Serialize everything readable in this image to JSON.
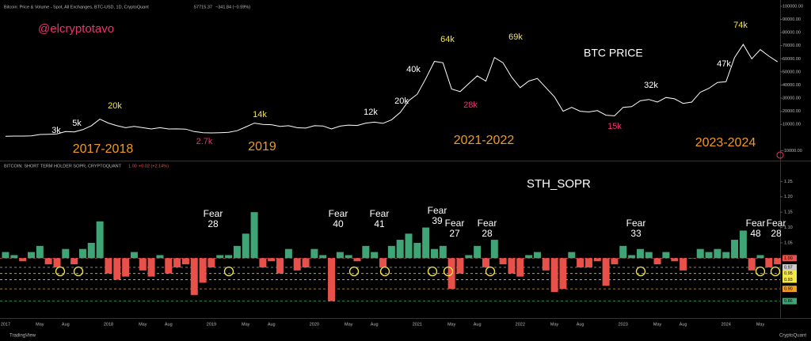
{
  "header": {
    "price_title": "Bitcoin: Price & Volume - Spot, All Exchanges, BTC-USD, 1D, CryptoQuant",
    "price_last": "57715.37",
    "price_change": "−341.84 (−0.59%)",
    "sopr_title": "BITCOIN: SHORT TERM HOLDER SOPR, CRYPTOQUANT",
    "sopr_last": "1.00",
    "sopr_change": "+0.02 (+2.14%)",
    "author": "@elcryptotavo",
    "price_label": "BTC PRICE",
    "sopr_label": "STH_SOPR"
  },
  "footer": {
    "left": "TradingView",
    "right": "CryptoQuant"
  },
  "chart_data": [
    {
      "type": "line",
      "color": "#ffffff",
      "categories": [
        "2017",
        null,
        null,
        null,
        "May",
        null,
        null,
        "Aug",
        null,
        null,
        null,
        null,
        "2018",
        null,
        null,
        null,
        "May",
        null,
        null,
        "Aug",
        null,
        null,
        null,
        null,
        "2019",
        null,
        null,
        null,
        "May",
        null,
        null,
        "Aug",
        null,
        null,
        null,
        null,
        "2020",
        null,
        null,
        null,
        "May",
        null,
        null,
        "Aug",
        null,
        null,
        null,
        null,
        "2021",
        null,
        null,
        null,
        "May",
        null,
        null,
        "Aug",
        null,
        null,
        null,
        null,
        "2022",
        null,
        null,
        null,
        "May",
        null,
        null,
        "Aug",
        null,
        null,
        null,
        null,
        "2023",
        null,
        null,
        null,
        "May",
        null,
        null,
        "Aug",
        null,
        null,
        null,
        null,
        "2024",
        null,
        null,
        null,
        "May",
        null,
        null
      ],
      "values": [
        1000,
        1100,
        1100,
        1300,
        2300,
        2500,
        2800,
        4500,
        4300,
        6000,
        9000,
        14000,
        11000,
        9000,
        7500,
        8500,
        7500,
        6500,
        7500,
        6500,
        6600,
        6400,
        4500,
        3700,
        3500,
        3700,
        4000,
        5200,
        8000,
        11000,
        10000,
        9800,
        8500,
        9000,
        7500,
        7200,
        9000,
        8800,
        6500,
        8700,
        9500,
        9200,
        11000,
        11700,
        10800,
        13500,
        19000,
        28000,
        33000,
        45000,
        58000,
        57000,
        37000,
        35000,
        41000,
        47000,
        43000,
        61000,
        57000,
        46000,
        38000,
        43000,
        45000,
        38000,
        31000,
        20000,
        23000,
        20000,
        19500,
        20500,
        17000,
        16500,
        23000,
        23500,
        28000,
        29000,
        27000,
        30500,
        29500,
        26000,
        27000,
        34500,
        37500,
        42000,
        42500,
        61000,
        71000,
        60000,
        67000,
        62000,
        57700
      ],
      "ylim": [
        -17000,
        103000
      ],
      "yticks": [
        {
          "value": 100000,
          "label": "100000.00"
        },
        {
          "value": 90000,
          "label": "90000.00"
        },
        {
          "value": 80000,
          "label": "80000.00"
        },
        {
          "value": 70000,
          "label": "70000.00"
        },
        {
          "value": 60000,
          "label": "60000.00"
        },
        {
          "value": 50000,
          "label": "50000.00"
        },
        {
          "value": 40000,
          "label": "40000.00"
        },
        {
          "value": 30000,
          "label": "30000.00"
        },
        {
          "value": 20000,
          "label": "20000.00"
        },
        {
          "value": 10000,
          "label": "10000.00"
        },
        {
          "value": -10000,
          "label": "-10000.00"
        }
      ],
      "annotations": [
        {
          "text": "3k",
          "color": "#ffffff"
        },
        {
          "text": "5k",
          "color": "#ffffff"
        },
        {
          "text": "20k",
          "color": "#f5e64a"
        },
        {
          "text": "2.7k",
          "color": "#e8336f"
        },
        {
          "text": "14k",
          "color": "#f5e64a"
        },
        {
          "text": "12k",
          "color": "#ffffff"
        },
        {
          "text": "20k",
          "color": "#ffffff"
        },
        {
          "text": "40k",
          "color": "#ffffff"
        },
        {
          "text": "64k",
          "color": "#f5e64a"
        },
        {
          "text": "28k",
          "color": "#e8336f"
        },
        {
          "text": "69k",
          "color": "#f5e64a"
        },
        {
          "text": "15k",
          "color": "#e8336f"
        },
        {
          "text": "32k",
          "color": "#ffffff"
        },
        {
          "text": "47k",
          "color": "#ffffff"
        },
        {
          "text": "74k",
          "color": "#f5e64a"
        }
      ],
      "periods": [
        "2017-2018",
        "2019",
        "2021-2022",
        "2023-2024"
      ]
    },
    {
      "type": "bar",
      "baseline": 1,
      "up_color": "#3fa577",
      "down_color": "#e8504a",
      "values": [
        1.02,
        1.01,
        0.99,
        1.02,
        1.04,
        0.98,
        0.97,
        1.03,
        0.98,
        1.03,
        1.05,
        1.12,
        0.95,
        0.93,
        0.94,
        1.02,
        0.96,
        0.94,
        1.01,
        0.95,
        0.97,
        0.98,
        0.88,
        0.92,
        0.97,
        1.01,
        1.01,
        1.04,
        1.08,
        1.15,
        0.97,
        0.99,
        0.95,
        1.03,
        0.96,
        0.97,
        1.03,
        1.01,
        0.86,
        1.02,
        1.01,
        0.99,
        1.04,
        1.02,
        0.97,
        1.04,
        1.06,
        1.08,
        1.05,
        1.1,
        1.03,
        1.04,
        0.9,
        0.95,
        1.01,
        1.04,
        0.97,
        1.06,
        0.98,
        0.95,
        0.94,
        1.01,
        1.02,
        0.96,
        0.89,
        0.9,
        1.02,
        0.97,
        0.97,
        0.99,
        0.91,
        0.98,
        1.04,
        1.01,
        1.03,
        1.02,
        0.98,
        1.02,
        0.99,
        0.96,
        1.0,
        1.03,
        1.02,
        1.03,
        1.02,
        1.06,
        1.09,
        0.96,
        1.01,
        0.97,
        0.98
      ],
      "ylim": [
        0.81,
        1.3
      ],
      "yticks": [
        1.25,
        {
          "value": 1.2,
          "label": "1.20"
        },
        1.15,
        {
          "value": 1.1,
          "label": "1.10"
        },
        1.05
      ],
      "levels": [
        {
          "value": 1,
          "label": "1.00",
          "color": "#e8504a"
        },
        {
          "value": 0.97,
          "label": "0.97",
          "color": "#cccccc"
        },
        {
          "value": 0.95,
          "label": "0.95",
          "color": "#f5e64a"
        },
        {
          "value": 0.93,
          "label": "0.93",
          "color": "#f5e64a"
        },
        {
          "value": 0.9,
          "label": "0.90",
          "color": "#f29b1d"
        },
        {
          "value": 0.86,
          "label": "0.86",
          "color": "#3fa577"
        }
      ],
      "annotations": [
        {
          "label": "Fear",
          "value": 28
        },
        {
          "label": "Fear",
          "value": 40
        },
        {
          "label": "Fear",
          "value": 41
        },
        {
          "label": "Fear",
          "value": 39
        },
        {
          "label": "Fear",
          "value": 27
        },
        {
          "label": "Fear",
          "value": 28
        },
        {
          "label": "Fear",
          "value": 33
        },
        {
          "label": "Fear",
          "value": 48
        },
        {
          "label": "Fear",
          "value": 28
        }
      ]
    }
  ]
}
